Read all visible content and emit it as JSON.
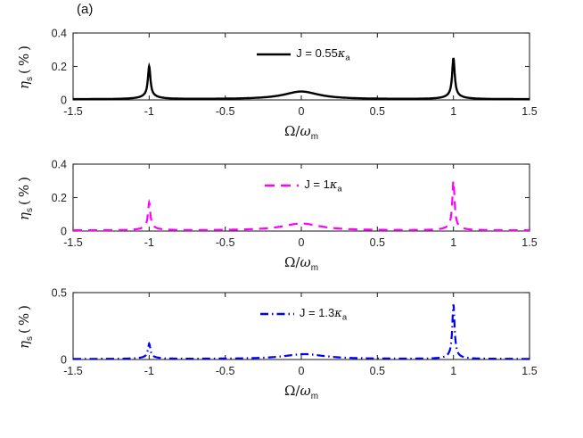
{
  "figure": {
    "panel_label": "(a)",
    "background": "#ffffff",
    "axis_color": "#2b2b2b",
    "tick_label_color": "#222222"
  },
  "chart_data": {
    "type": "line",
    "title": "",
    "xlabel": {
      "prefix": "Ω/",
      "omega": "ω",
      "sub": "m"
    },
    "ylabel": {
      "eta": "η",
      "sub": "s",
      "units": "(%)"
    },
    "x_range": [
      -1.5,
      1.5
    ],
    "x_ticks": [
      -1.5,
      -1,
      -0.5,
      0,
      0.5,
      1,
      1.5
    ],
    "x_tick_labels": [
      "-1.5",
      "-1",
      "-0.5",
      "0",
      "0.5",
      "1",
      "1.5"
    ],
    "grid": false,
    "legend_position": "inside-top-center",
    "subplots": [
      {
        "legend": {
          "prefix": "J = 0.55",
          "kappa": "κ",
          "sub": "a"
        },
        "color": "#000000",
        "linestyle": "solid",
        "dash": "",
        "line_width": 2.4,
        "ylim": [
          0,
          0.4
        ],
        "y_ticks": [
          0,
          0.2,
          0.4
        ],
        "y_tick_labels": [
          "0",
          "0.2",
          "0.4"
        ],
        "baseline": 0.004,
        "peak_summary": {
          "left_peak_x": -1,
          "left_peak_y": 0.2,
          "center_bump_x": 0,
          "center_bump_y": 0.05,
          "right_peak_x": 1,
          "right_peak_y": 0.25
        },
        "peaks": [
          {
            "center": -1,
            "hwhm": 0.01,
            "height": 0.176
          },
          {
            "center": -1,
            "hwhm": 0.06,
            "height": 0.02
          },
          {
            "center": 0,
            "hwhm": 0.14,
            "height": 0.046
          },
          {
            "center": 1,
            "hwhm": 0.01,
            "height": 0.226
          },
          {
            "center": 1,
            "hwhm": 0.06,
            "height": 0.02
          }
        ]
      },
      {
        "legend": {
          "prefix": "J = 1",
          "kappa": "κ",
          "sub": "a"
        },
        "color": "#ff00ff",
        "linestyle": "dashed",
        "dash": "10 7",
        "line_width": 2.2,
        "ylim": [
          0,
          0.4
        ],
        "y_ticks": [
          0,
          0.2,
          0.4
        ],
        "y_tick_labels": [
          "0",
          "0.2",
          "0.4"
        ],
        "baseline": 0.004,
        "peak_summary": {
          "left_peak_x": -1,
          "left_peak_y": 0.17,
          "center_bump_x": 0,
          "center_bump_y": 0.045,
          "right_peak_x": 1,
          "right_peak_y": 0.3
        },
        "peaks": [
          {
            "center": -1,
            "hwhm": 0.009,
            "height": 0.148
          },
          {
            "center": -1,
            "hwhm": 0.05,
            "height": 0.018
          },
          {
            "center": 0,
            "hwhm": 0.15,
            "height": 0.041
          },
          {
            "center": 1,
            "hwhm": 0.009,
            "height": 0.276
          },
          {
            "center": 1,
            "hwhm": 0.05,
            "height": 0.02
          }
        ]
      },
      {
        "legend": {
          "prefix": "J = 1.3",
          "kappa": "κ",
          "sub": "a"
        },
        "color": "#0000f5",
        "linestyle": "dash-dot",
        "dash": "9 4 1.5 4",
        "line_width": 2.2,
        "ylim": [
          0,
          0.5
        ],
        "y_ticks": [
          0,
          0.5
        ],
        "y_tick_labels": [
          "0",
          "0.5"
        ],
        "baseline": 0.004,
        "peak_summary": {
          "left_peak_x": -1,
          "left_peak_y": 0.12,
          "center_bump_x": 0.02,
          "center_bump_y": 0.04,
          "right_peak_x": 1,
          "right_peak_y": 0.41
        },
        "peaks": [
          {
            "center": -1,
            "hwhm": 0.009,
            "height": 0.098
          },
          {
            "center": -1,
            "hwhm": 0.05,
            "height": 0.016
          },
          {
            "center": 0.02,
            "hwhm": 0.16,
            "height": 0.036
          },
          {
            "center": 1,
            "hwhm": 0.009,
            "height": 0.386
          },
          {
            "center": 1,
            "hwhm": 0.05,
            "height": 0.02
          }
        ]
      }
    ]
  }
}
